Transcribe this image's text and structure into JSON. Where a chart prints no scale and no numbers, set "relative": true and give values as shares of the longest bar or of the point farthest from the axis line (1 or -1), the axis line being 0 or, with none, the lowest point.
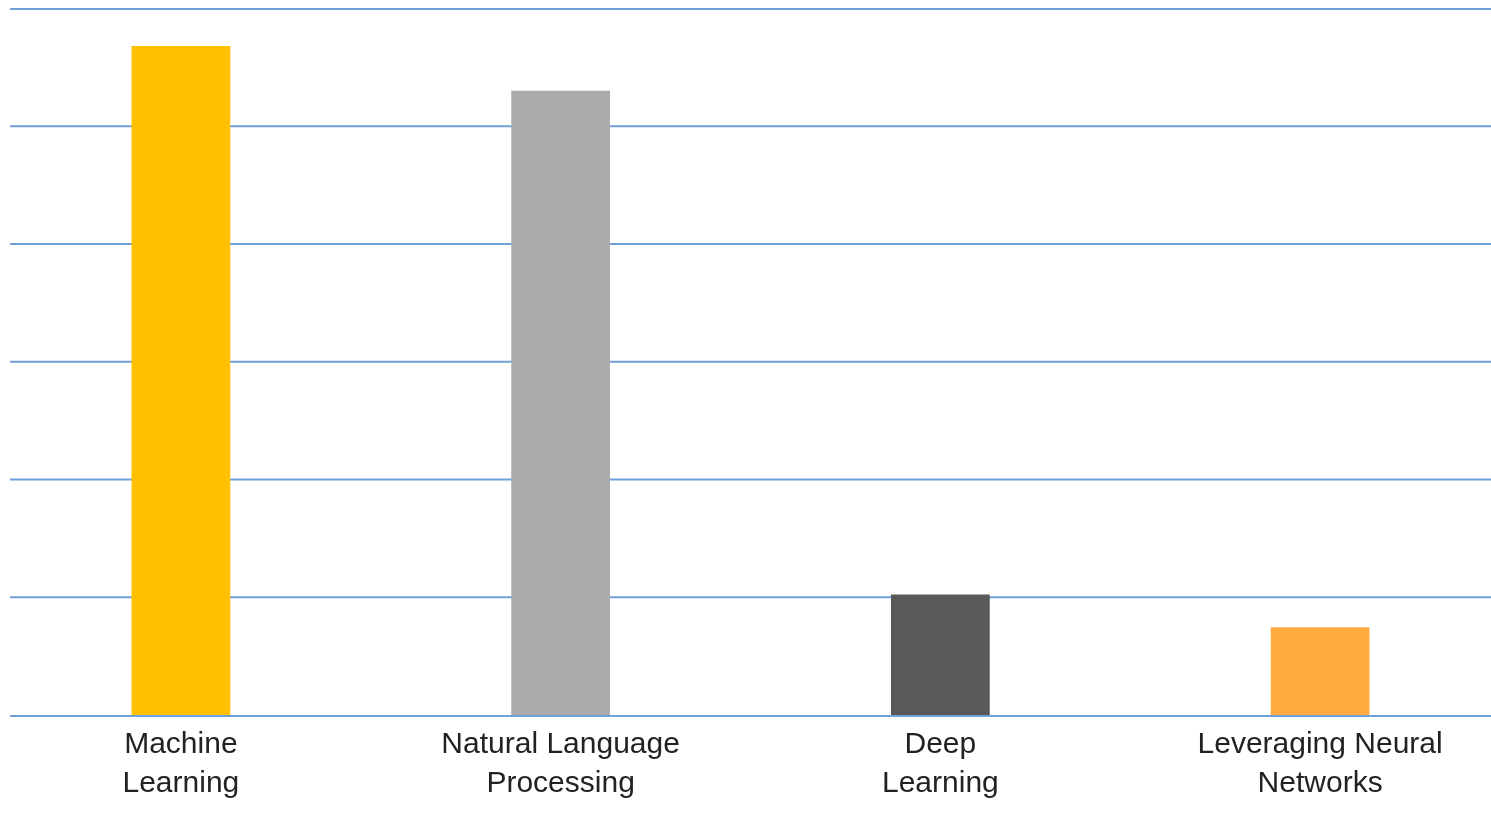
{
  "chart_data": {
    "type": "bar",
    "relative": true,
    "categories": [
      "Machine Learning",
      "Natural Language Processing",
      "Deep Learning",
      "Leveraging Neural Networks"
    ],
    "values": [
      1,
      0.933,
      0.18,
      0.131
    ],
    "colors": [
      "#ffc000",
      "#ababab",
      "#595959",
      "#ffab40"
    ],
    "ref_lines": [
      {
        "axis": "y",
        "value": 0.176,
        "color": "#6fa0d8"
      },
      {
        "axis": "y",
        "value": 0.352,
        "color": "#6fa0d8"
      },
      {
        "axis": "y",
        "value": 0.528,
        "color": "#6fa0d8"
      },
      {
        "axis": "y",
        "value": 0.704,
        "color": "#6fa0d8"
      },
      {
        "axis": "y",
        "value": 0.88,
        "color": "#6fa0d8"
      },
      {
        "axis": "y",
        "value": 1.055,
        "color": "#6fa0d8"
      }
    ]
  }
}
